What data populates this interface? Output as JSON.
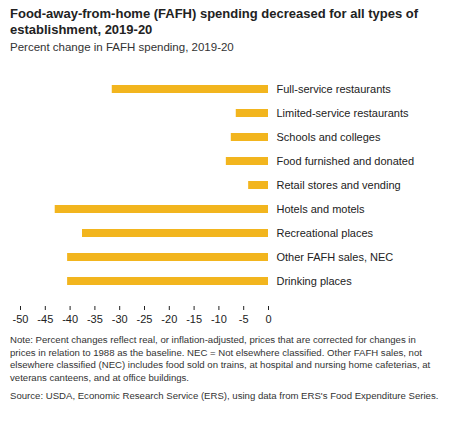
{
  "chart_data": {
    "type": "bar",
    "orientation": "horizontal",
    "title": "Food-away-from-home (FAFH) spending decreased for all types of establishment, 2019-20",
    "subtitle": "Percent change in FAFH spending, 2019-20",
    "categories": [
      "Full-service restaurants",
      "Limited-service restaurants",
      "Schools and colleges",
      "Food furnished and donated",
      "Retail stores and vending",
      "Hotels and motels",
      "Recreational places",
      "Other FAFH sales, NEC",
      "Drinking places"
    ],
    "values": [
      -31.5,
      -6.5,
      -7.5,
      -8.5,
      -4,
      -43,
      -37.5,
      -40.5,
      -40.5
    ],
    "color": "#f2b51e",
    "xlim": [
      -50,
      0
    ],
    "xticks": [
      -50,
      -45,
      -40,
      -35,
      -30,
      -25,
      -20,
      -15,
      -10,
      -5,
      0
    ],
    "grid": false,
    "note": "Note: Percent changes reflect real, or inflation-adjusted, prices that are corrected for changes in prices in relation to 1988 as the baseline. NEC = Not elsewhere classified. Other FAFH sales, not elsewhere classified (NEC) includes food sold on trains, at hospital and nursing home cafeterias, at veterans canteens, and at office buildings.",
    "source": "Source: USDA, Economic Research Service (ERS), using data from ERS's Food Expenditure Series."
  }
}
